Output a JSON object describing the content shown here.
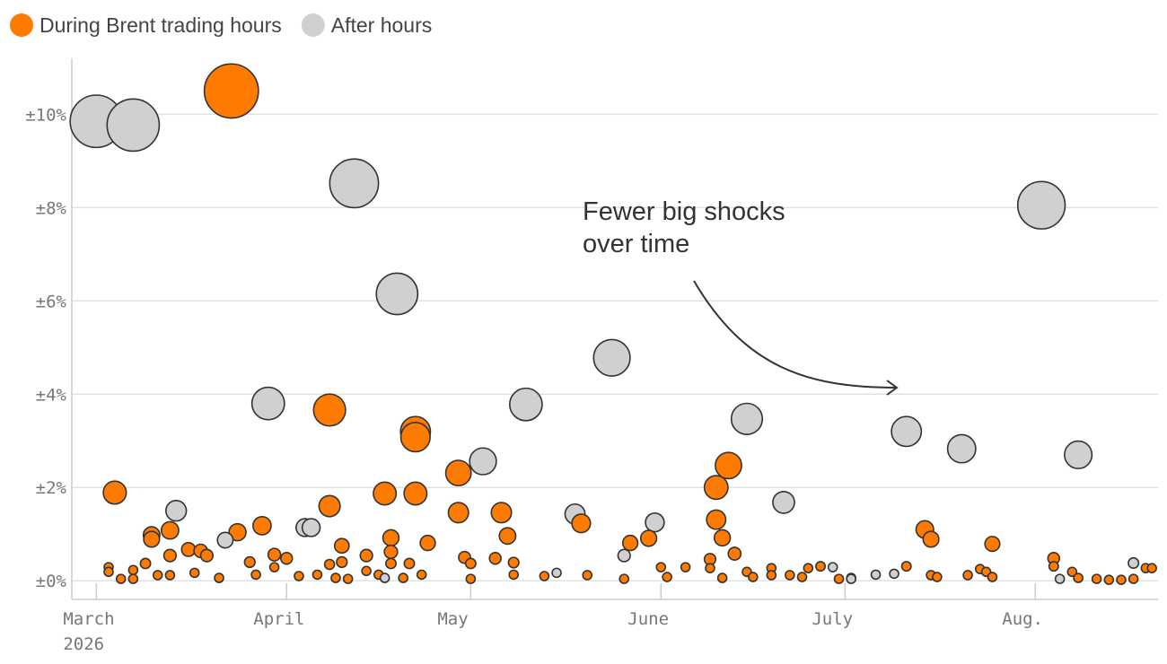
{
  "chart_data": {
    "type": "scatter",
    "annotation": "Fewer big shocks\nover time",
    "legend": "top-left",
    "grid": true,
    "xlim": [
      -4,
      173
    ],
    "xticks": [
      {
        "value": 0,
        "label": "March\n2026"
      },
      {
        "value": 31,
        "label": "April"
      },
      {
        "value": 61,
        "label": "May"
      },
      {
        "value": 92,
        "label": "June"
      },
      {
        "value": 122,
        "label": "July"
      },
      {
        "value": 153,
        "label": "Aug."
      }
    ],
    "ylim": [
      -0.4,
      11.2
    ],
    "yticks": [
      {
        "value": 0,
        "label": "±0%"
      },
      {
        "value": 2,
        "label": "±2%"
      },
      {
        "value": 4,
        "label": "±4%"
      },
      {
        "value": 6,
        "label": "±6%"
      },
      {
        "value": 8,
        "label": "±8%"
      },
      {
        "value": 10,
        "label": "±10%"
      }
    ],
    "series": [
      {
        "name": "During Brent trading hours",
        "color": "#ff7b00",
        "x": [
          22,
          38,
          52,
          52,
          3,
          38,
          47,
          52,
          59,
          59,
          66,
          103,
          101,
          101,
          102,
          104,
          135,
          136,
          146,
          79,
          90,
          87,
          67,
          54,
          48,
          48,
          48,
          40,
          27,
          23,
          9,
          9,
          12,
          12,
          15,
          17,
          18,
          8,
          2,
          2,
          6,
          25,
          29,
          31,
          29,
          40,
          38,
          44,
          44,
          51,
          60,
          61,
          65,
          68,
          92,
          96,
          100,
          100,
          106,
          110,
          116,
          118,
          132,
          144,
          145,
          156,
          156,
          159,
          171,
          172,
          4,
          6,
          10,
          12,
          16,
          20,
          26,
          33,
          36,
          39,
          41,
          46,
          50,
          53,
          61,
          68,
          73,
          80,
          86,
          93,
          102,
          107,
          110,
          113,
          115,
          121,
          123,
          136,
          137,
          142,
          146,
          160,
          163,
          165,
          167,
          169
        ],
        "values": [
          10.5,
          3.66,
          3.2,
          3.08,
          1.89,
          1.6,
          1.87,
          1.87,
          2.31,
          1.46,
          1.46,
          2.47,
          2.0,
          1.31,
          0.92,
          0.58,
          1.1,
          0.89,
          0.79,
          1.23,
          0.91,
          0.81,
          0.96,
          0.81,
          0.92,
          0.62,
          0.37,
          0.75,
          1.18,
          1.04,
          0.98,
          0.89,
          1.08,
          0.54,
          0.67,
          0.64,
          0.54,
          0.37,
          0.29,
          0.19,
          0.23,
          0.4,
          0.56,
          0.48,
          0.29,
          0.4,
          0.35,
          0.54,
          0.21,
          0.37,
          0.5,
          0.37,
          0.48,
          0.39,
          0.29,
          0.29,
          0.46,
          0.27,
          0.19,
          0.27,
          0.27,
          0.31,
          0.31,
          0.25,
          0.19,
          0.48,
          0.31,
          0.19,
          0.27,
          0.27,
          0.04,
          0.04,
          0.12,
          0.12,
          0.17,
          0.06,
          0.13,
          0.1,
          0.13,
          0.06,
          0.04,
          0.13,
          0.06,
          0.13,
          0.04,
          0.13,
          0.1,
          0.12,
          0.04,
          0.08,
          0.06,
          0.08,
          0.12,
          0.12,
          0.08,
          0.04,
          0.06,
          0.12,
          0.08,
          0.12,
          0.08,
          0.06,
          0.04,
          0.02,
          0.02,
          0.04
        ]
      },
      {
        "name": "After hours",
        "color": "#d0d0d0",
        "x": [
          0,
          6,
          42,
          49,
          28,
          21,
          13,
          34,
          35,
          63,
          70,
          84,
          78,
          91,
          86,
          106,
          112,
          132,
          141,
          154,
          160,
          169,
          75,
          127,
          130,
          120,
          47,
          157,
          123
        ],
        "values": [
          9.85,
          9.77,
          8.52,
          6.15,
          3.8,
          0.87,
          1.5,
          1.14,
          1.14,
          2.56,
          3.78,
          4.78,
          1.43,
          1.25,
          0.54,
          3.47,
          1.68,
          3.2,
          2.83,
          8.05,
          2.7,
          0.38,
          0.17,
          0.13,
          0.15,
          0.29,
          0.06,
          0.04,
          0.04
        ]
      }
    ]
  }
}
